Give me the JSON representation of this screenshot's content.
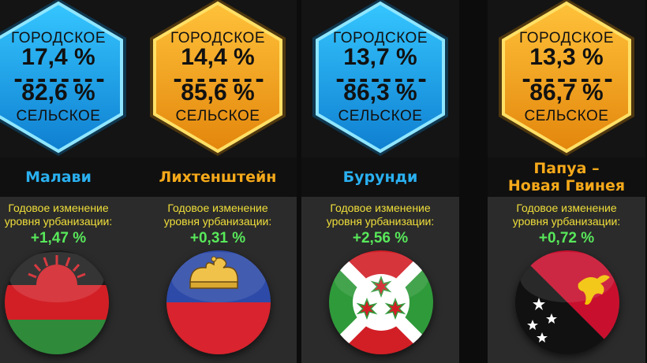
{
  "columns": [
    {
      "hex_color": "#18a8ea",
      "urban_label": "ГОРОДСКОЕ",
      "urban_pct": "17,4 %",
      "divider": "--------",
      "rural_pct": "82,6 %",
      "rural_label": "СЕЛЬСКОЕ",
      "country": "Малави",
      "country_color": "#2ab0f0",
      "annual_label_line1": "Годовое изменение",
      "annual_label_line2": "уровня урбанизации:",
      "annual_value": "+1,47 %",
      "flag_icon": "malawi-flag"
    },
    {
      "hex_color": "#f5a414",
      "urban_label": "ГОРОДСКОЕ",
      "urban_pct": "14,4 %",
      "divider": "--------",
      "rural_pct": "85,6 %",
      "rural_label": "СЕЛЬСКОЕ",
      "country": "Лихтенштейн",
      "country_color": "#f5a91a",
      "annual_label_line1": "Годовое изменение",
      "annual_label_line2": "уровня урбанизации:",
      "annual_value": "+0,31 %",
      "flag_icon": "liechtenstein-flag"
    },
    {
      "hex_color": "#18a8ea",
      "urban_label": "ГОРОДСКОЕ",
      "urban_pct": "13,7 %",
      "divider": "--------",
      "rural_pct": "86,3 %",
      "rural_label": "СЕЛЬСКОЕ",
      "country": "Бурунди",
      "country_color": "#2ab0f0",
      "annual_label_line1": "Годовое изменение",
      "annual_label_line2": "уровня урбанизации:",
      "annual_value": "+2,56 %",
      "flag_icon": "burundi-flag"
    },
    {
      "hex_color": "#f5a414",
      "urban_label": "ГОРОДСКОЕ",
      "urban_pct": "13,3 %",
      "divider": "--------",
      "rural_pct": "86,7 %",
      "rural_label": "СЕЛЬСКОЕ",
      "country_line1": "Папуа –",
      "country_line2": "Новая Гвинея",
      "country_color": "#f5a91a",
      "annual_label_line1": "Годовое изменение",
      "annual_label_line2": "уровня урбанизации:",
      "annual_value": "+0,72 %",
      "flag_icon": "papua-new-guinea-flag"
    }
  ],
  "colors": {
    "label_yellow": "#f0df3a",
    "value_green": "#58e85a",
    "panel_gray": "#2b2b2b"
  }
}
